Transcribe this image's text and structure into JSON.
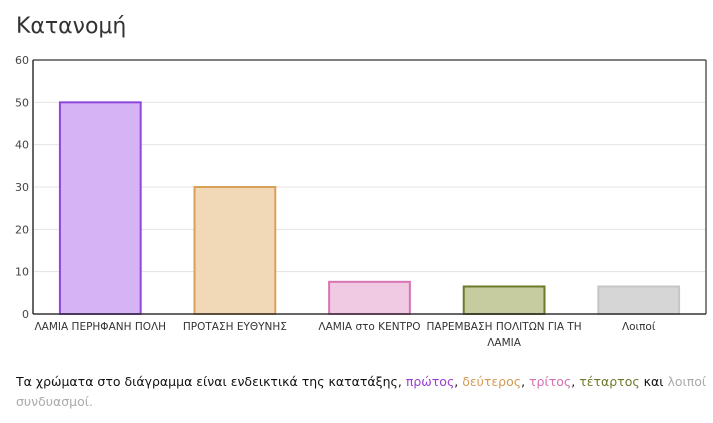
{
  "page": {
    "title": "Κατανομή"
  },
  "chart_data": {
    "type": "bar",
    "categories": [
      [
        "ΛΑΜΙΑ ΠΕΡΗΦΑΝΗ ΠΟΛΗ"
      ],
      [
        "ΠΡΟΤΑΣΗ ΕΥΘΥΝΗΣ"
      ],
      [
        "ΛΑΜΙΑ στο ΚΕΝΤΡΟ"
      ],
      [
        "ΠΑΡΕΜΒΑΣΗ ΠΟΛΙΤΩΝ ΓΙΑ ΤΗ",
        "ΛΑΜΙΑ"
      ],
      [
        "Λοιποί"
      ]
    ],
    "values": [
      50,
      30,
      7.6,
      6.5,
      6.5
    ],
    "fill_colors": [
      "#d5b3f5",
      "#f1d9b8",
      "#f0c9e2",
      "#c6cca0",
      "#d6d6d6"
    ],
    "stroke_colors": [
      "#8e47dd",
      "#d9a05a",
      "#d873b4",
      "#6e7a2a",
      "#c6c6c6"
    ],
    "ylim": [
      0,
      60
    ],
    "yticks": [
      0,
      10,
      20,
      30,
      40,
      50,
      60
    ],
    "grid": true
  },
  "note": {
    "before": "Τα χρώματα στο διάγραμμα είναι ενδεικτικά της κατατάξης, ",
    "first": "πρώτος",
    "sep1": ", ",
    "second": "δεύτερος",
    "sep2": ", ",
    "third": "τρίτος",
    "sep3": ", ",
    "fourth": "τέταρτος",
    "and": " και ",
    "rest": "λοιποί συνδυασμοί.",
    "colors": {
      "first": "#9b3fd6",
      "second": "#d49a55",
      "third": "#d86fb0",
      "fourth": "#6e7a2a",
      "rest": "#aaaaaa"
    }
  }
}
